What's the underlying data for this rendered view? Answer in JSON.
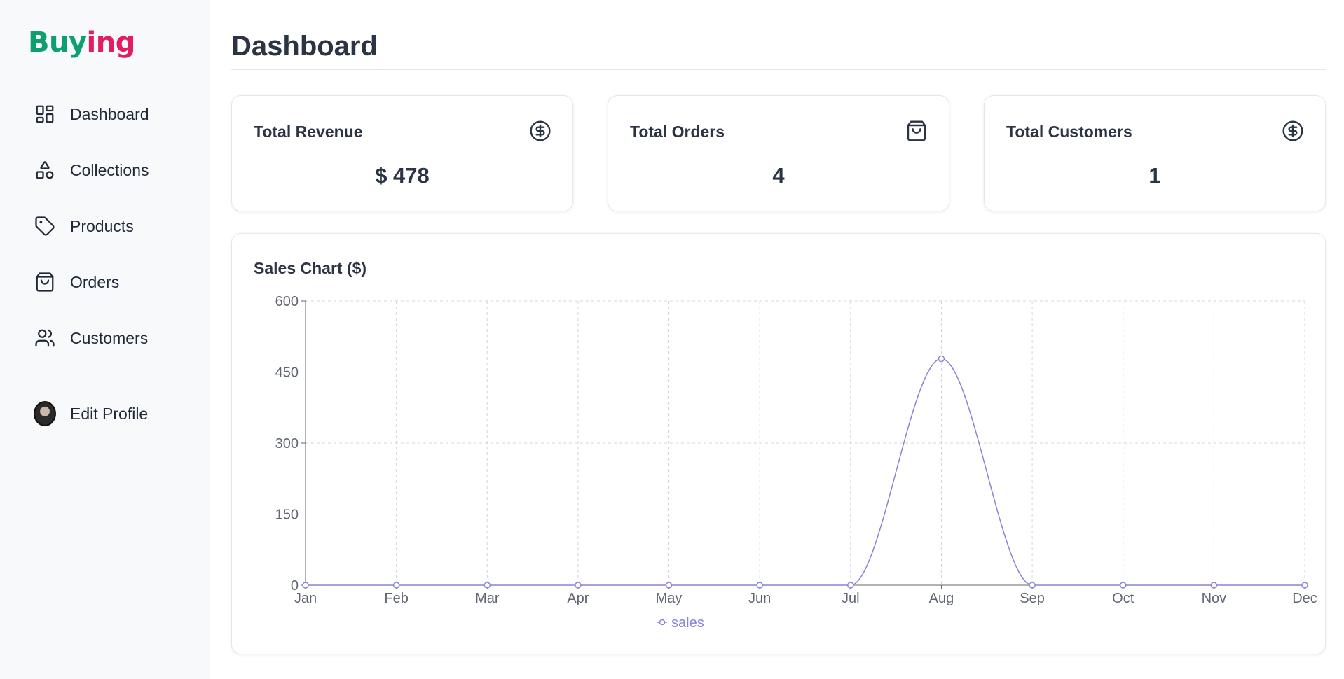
{
  "sidebar": {
    "logo": {
      "part1": "Buy",
      "part2": "ing"
    },
    "items": [
      {
        "label": "Dashboard",
        "icon": "grid-icon"
      },
      {
        "label": "Collections",
        "icon": "shapes-icon"
      },
      {
        "label": "Products",
        "icon": "tag-icon"
      },
      {
        "label": "Orders",
        "icon": "shopping-bag-icon"
      },
      {
        "label": "Customers",
        "icon": "users-icon"
      }
    ],
    "profile": {
      "label": "Edit Profile",
      "icon": "avatar"
    }
  },
  "page": {
    "title": "Dashboard"
  },
  "cards": [
    {
      "label": "Total Revenue",
      "value": "$ 478",
      "icon": "dollar-circle-icon"
    },
    {
      "label": "Total Orders",
      "value": "4",
      "icon": "shopping-bag-icon"
    },
    {
      "label": "Total Customers",
      "value": "1",
      "icon": "dollar-circle-icon"
    }
  ],
  "chart": {
    "title": "Sales Chart ($)"
  },
  "colors": {
    "accent": "#8884d8",
    "logo_green": "#0e9f6e",
    "logo_pink": "#e11d63"
  },
  "chart_data": {
    "type": "line",
    "categories": [
      "Jan",
      "Feb",
      "Mar",
      "Apr",
      "May",
      "Jun",
      "Jul",
      "Aug",
      "Sep",
      "Oct",
      "Nov",
      "Dec"
    ],
    "series": [
      {
        "name": "sales",
        "values": [
          0,
          0,
          0,
          0,
          0,
          0,
          0,
          478,
          0,
          0,
          0,
          0
        ]
      }
    ],
    "yticks": [
      0,
      150,
      300,
      450,
      600
    ],
    "ylim": [
      0,
      600
    ],
    "grid": true,
    "legend": "bottom-center"
  }
}
